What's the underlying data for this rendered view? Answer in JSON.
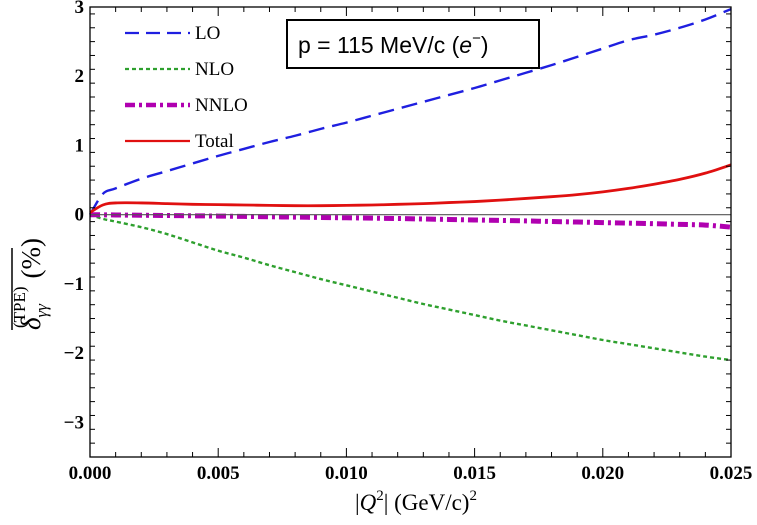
{
  "chart_data": {
    "type": "line",
    "title": "",
    "xlabel_abs_open": "|",
    "xlabel_var": "Q",
    "xlabel_sup": "2",
    "xlabel_abs_close": "|",
    "xlabel_unit": "(GeV/c)",
    "xlabel_unit_sup": "2",
    "ylabel_symbol": "δ",
    "ylabel_sub": "γγ",
    "ylabel_sup": "(TPE)",
    "ylabel_unit": "(%)",
    "xlim": [
      0.0,
      0.025
    ],
    "ylim": [
      -3.5,
      3.0
    ],
    "x_ticks": [
      "0.000",
      "0.005",
      "0.010",
      "0.015",
      "0.020",
      "0.025"
    ],
    "x_tick_values": [
      0.0,
      0.005,
      0.01,
      0.015,
      0.02,
      0.025
    ],
    "y_ticks": [
      "3",
      "2",
      "1",
      "0",
      "−1",
      "−2",
      "−3"
    ],
    "y_tick_values": [
      3,
      2,
      1,
      0,
      -1,
      -2,
      -3
    ],
    "zero_line": true,
    "grid": false,
    "legend_position": "top-left",
    "annotation": {
      "prefix": "p = 115 MeV/c (",
      "particle": "e",
      "particle_sup": "−",
      "suffix": ")"
    },
    "x": [
      0.0,
      0.0005,
      0.001,
      0.002,
      0.003,
      0.004,
      0.005,
      0.006,
      0.007,
      0.008,
      0.009,
      0.01,
      0.011,
      0.012,
      0.013,
      0.014,
      0.015,
      0.016,
      0.017,
      0.018,
      0.019,
      0.02,
      0.021,
      0.022,
      0.023,
      0.024,
      0.025
    ],
    "series": [
      {
        "name": "LO",
        "color": "#1f1fe0",
        "style": "dashed",
        "values": [
          0.0,
          0.3,
          0.38,
          0.52,
          0.63,
          0.74,
          0.85,
          0.95,
          1.05,
          1.14,
          1.24,
          1.33,
          1.43,
          1.53,
          1.63,
          1.73,
          1.83,
          1.94,
          2.05,
          2.16,
          2.28,
          2.4,
          2.52,
          2.6,
          2.7,
          2.82,
          2.97
        ]
      },
      {
        "name": "NLO",
        "color": "#2ea02e",
        "style": "dotted",
        "values": [
          0.0,
          -0.06,
          -0.1,
          -0.18,
          -0.28,
          -0.4,
          -0.52,
          -0.62,
          -0.73,
          -0.83,
          -0.93,
          -1.02,
          -1.11,
          -1.2,
          -1.29,
          -1.37,
          -1.45,
          -1.53,
          -1.6,
          -1.67,
          -1.74,
          -1.81,
          -1.87,
          -1.93,
          -1.99,
          -2.05,
          -2.1
        ]
      },
      {
        "name": "NNLO",
        "color": "#b000b0",
        "style": "dashdot",
        "values": [
          0.0,
          -0.002,
          -0.004,
          -0.008,
          -0.012,
          -0.016,
          -0.02,
          -0.025,
          -0.03,
          -0.035,
          -0.04,
          -0.045,
          -0.05,
          -0.055,
          -0.062,
          -0.069,
          -0.076,
          -0.083,
          -0.09,
          -0.098,
          -0.106,
          -0.114,
          -0.122,
          -0.13,
          -0.14,
          -0.15,
          -0.18
        ]
      },
      {
        "name": "Total",
        "color": "#e01010",
        "style": "solid",
        "values": [
          0.03,
          0.14,
          0.17,
          0.17,
          0.16,
          0.15,
          0.145,
          0.14,
          0.135,
          0.13,
          0.13,
          0.135,
          0.14,
          0.15,
          0.16,
          0.175,
          0.19,
          0.21,
          0.235,
          0.26,
          0.29,
          0.33,
          0.38,
          0.44,
          0.51,
          0.6,
          0.72
        ]
      }
    ]
  }
}
